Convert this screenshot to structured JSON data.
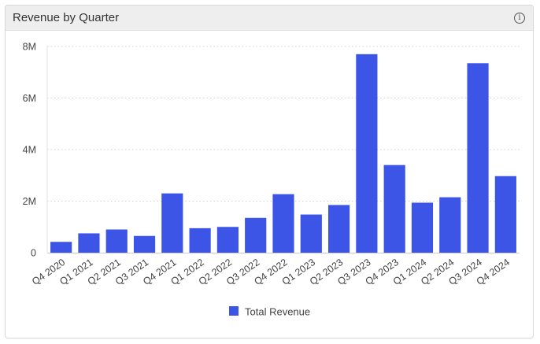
{
  "panel": {
    "title": "Revenue by Quarter",
    "info_icon": "info-icon",
    "info_glyph": "i"
  },
  "chart_data": {
    "type": "bar",
    "categories": [
      "Q4 2020",
      "Q1 2021",
      "Q2 2021",
      "Q3 2021",
      "Q4 2021",
      "Q1 2022",
      "Q2 2022",
      "Q3 2022",
      "Q4 2022",
      "Q1 2023",
      "Q2 2023",
      "Q3 2023",
      "Q4 2023",
      "Q1 2024",
      "Q2 2024",
      "Q3 2024",
      "Q4 2024"
    ],
    "series": [
      {
        "name": "Total Revenue",
        "color": "#3d55e6",
        "values": [
          420000,
          750000,
          900000,
          650000,
          2300000,
          950000,
          1000000,
          1350000,
          2270000,
          1480000,
          1850000,
          7700000,
          3400000,
          1940000,
          2150000,
          7350000,
          2970000
        ]
      }
    ],
    "yticks": [
      0,
      2000000,
      4000000,
      6000000,
      8000000
    ],
    "ytick_labels": [
      "0",
      "2M",
      "4M",
      "6M",
      "8M"
    ],
    "ylim": [
      0,
      8000000
    ],
    "grid": "horizontal dotted",
    "legend_position": "bottom-center"
  }
}
